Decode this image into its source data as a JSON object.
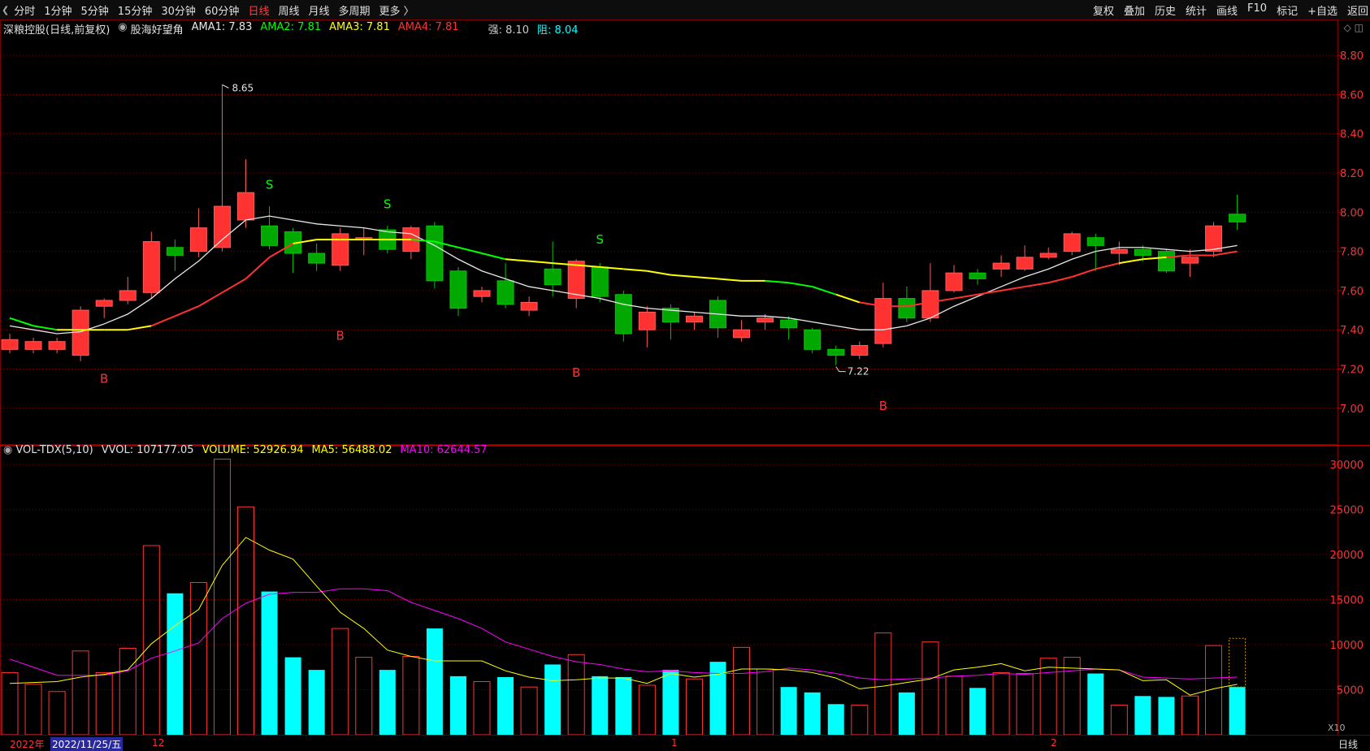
{
  "toolbar": {
    "left_items": [
      "分时",
      "1分钟",
      "5分钟",
      "15分钟",
      "30分钟",
      "60分钟",
      "日线",
      "周线",
      "月线",
      "多周期",
      "更多 〉"
    ],
    "active_index": 6,
    "right_items": [
      "复权",
      "叠加",
      "历史",
      "统计",
      "画线",
      "F10",
      "标记",
      "+自选",
      "返回"
    ]
  },
  "info": {
    "stock": "深粮控股(日线,前复权)",
    "indicator": "股海好望角",
    "ama1": "AMA1: 7.83",
    "ama2": "AMA2: 7.81",
    "ama3": "AMA3: 7.81",
    "ama4": "AMA4: 7.81",
    "strong": "强: 8.10",
    "resist": "阻: 8.04"
  },
  "vol_info": {
    "name": "VOL-TDX(5,10)",
    "vvol": "VVOL: 107177.05",
    "volume": "VOLUME: 52926.94",
    "ma5": "MA5: 56488.02",
    "ma10": "MA10: 62644.57"
  },
  "date_axis": {
    "year": "2022年",
    "selected_date": "2022/11/25/五",
    "m12": "12",
    "m1": "1",
    "m2": "2",
    "period": "日线"
  },
  "colors": {
    "up": "#ff3232",
    "down": "#00a800",
    "cyan": "#00ffff",
    "yellow": "#ffff00",
    "magenta": "#ff00ff",
    "green": "#00ff00",
    "white": "#e8e8e8",
    "grid": "#7a0000"
  },
  "chart_data": [
    {
      "type": "candlestick",
      "price_ticks": [
        "8.80",
        "8.60",
        "8.40",
        "8.20",
        "8.00",
        "7.80",
        "7.60",
        "7.40",
        "7.20",
        "7.00"
      ],
      "ylim": [
        6.85,
        8.9
      ],
      "candles": [
        {
          "o": 7.3,
          "h": 7.38,
          "l": 7.28,
          "c": 7.35
        },
        {
          "o": 7.3,
          "h": 7.36,
          "l": 7.28,
          "c": 7.34
        },
        {
          "o": 7.3,
          "h": 7.36,
          "l": 7.28,
          "c": 7.34
        },
        {
          "o": 7.27,
          "h": 7.52,
          "l": 7.24,
          "c": 7.5
        },
        {
          "o": 7.52,
          "h": 7.56,
          "l": 7.46,
          "c": 7.55
        },
        {
          "o": 7.55,
          "h": 7.67,
          "l": 7.53,
          "c": 7.6
        },
        {
          "o": 7.59,
          "h": 7.9,
          "l": 7.56,
          "c": 7.85
        },
        {
          "o": 7.82,
          "h": 7.86,
          "l": 7.7,
          "c": 7.78
        },
        {
          "o": 7.8,
          "h": 8.02,
          "l": 7.77,
          "c": 7.92
        },
        {
          "o": 7.82,
          "h": 8.65,
          "l": 7.8,
          "c": 8.03
        },
        {
          "o": 7.96,
          "h": 8.27,
          "l": 7.92,
          "c": 8.1
        },
        {
          "o": 7.93,
          "h": 8.03,
          "l": 7.81,
          "c": 7.83
        },
        {
          "o": 7.9,
          "h": 7.92,
          "l": 7.69,
          "c": 7.79
        },
        {
          "o": 7.79,
          "h": 7.84,
          "l": 7.7,
          "c": 7.74
        },
        {
          "o": 7.73,
          "h": 7.92,
          "l": 7.7,
          "c": 7.89
        },
        {
          "o": 7.86,
          "h": 7.92,
          "l": 7.78,
          "c": 7.87
        },
        {
          "o": 7.91,
          "h": 7.93,
          "l": 7.79,
          "c": 7.81
        },
        {
          "o": 7.8,
          "h": 7.93,
          "l": 7.76,
          "c": 7.92
        },
        {
          "o": 7.93,
          "h": 7.95,
          "l": 7.61,
          "c": 7.65
        },
        {
          "o": 7.7,
          "h": 7.72,
          "l": 7.47,
          "c": 7.51
        },
        {
          "o": 7.57,
          "h": 7.62,
          "l": 7.54,
          "c": 7.6
        },
        {
          "o": 7.65,
          "h": 7.74,
          "l": 7.51,
          "c": 7.53
        },
        {
          "o": 7.5,
          "h": 7.57,
          "l": 7.47,
          "c": 7.54
        },
        {
          "o": 7.71,
          "h": 7.85,
          "l": 7.57,
          "c": 7.63
        },
        {
          "o": 7.56,
          "h": 7.76,
          "l": 7.51,
          "c": 7.75
        },
        {
          "o": 7.72,
          "h": 7.74,
          "l": 7.54,
          "c": 7.57
        },
        {
          "o": 7.58,
          "h": 7.6,
          "l": 7.34,
          "c": 7.38
        },
        {
          "o": 7.4,
          "h": 7.52,
          "l": 7.31,
          "c": 7.49
        },
        {
          "o": 7.51,
          "h": 7.53,
          "l": 7.35,
          "c": 7.44
        },
        {
          "o": 7.44,
          "h": 7.49,
          "l": 7.4,
          "c": 7.47
        },
        {
          "o": 7.55,
          "h": 7.57,
          "l": 7.36,
          "c": 7.41
        },
        {
          "o": 7.36,
          "h": 7.45,
          "l": 7.34,
          "c": 7.4
        },
        {
          "o": 7.44,
          "h": 7.48,
          "l": 7.4,
          "c": 7.46
        },
        {
          "o": 7.45,
          "h": 7.47,
          "l": 7.35,
          "c": 7.41
        },
        {
          "o": 7.4,
          "h": 7.41,
          "l": 7.28,
          "c": 7.3
        },
        {
          "o": 7.3,
          "h": 7.32,
          "l": 7.22,
          "c": 7.27
        },
        {
          "o": 7.27,
          "h": 7.34,
          "l": 7.25,
          "c": 7.32
        },
        {
          "o": 7.33,
          "h": 7.64,
          "l": 7.31,
          "c": 7.56
        },
        {
          "o": 7.56,
          "h": 7.62,
          "l": 7.44,
          "c": 7.46
        },
        {
          "o": 7.46,
          "h": 7.74,
          "l": 7.44,
          "c": 7.6
        },
        {
          "o": 7.6,
          "h": 7.73,
          "l": 7.59,
          "c": 7.69
        },
        {
          "o": 7.69,
          "h": 7.71,
          "l": 7.63,
          "c": 7.66
        },
        {
          "o": 7.71,
          "h": 7.78,
          "l": 7.67,
          "c": 7.74
        },
        {
          "o": 7.71,
          "h": 7.83,
          "l": 7.7,
          "c": 7.77
        },
        {
          "o": 7.77,
          "h": 7.82,
          "l": 7.76,
          "c": 7.79
        },
        {
          "o": 7.8,
          "h": 7.9,
          "l": 7.78,
          "c": 7.89
        },
        {
          "o": 7.87,
          "h": 7.89,
          "l": 7.7,
          "c": 7.83
        },
        {
          "o": 7.79,
          "h": 7.85,
          "l": 7.73,
          "c": 7.81
        },
        {
          "o": 7.81,
          "h": 7.83,
          "l": 7.75,
          "c": 7.78
        },
        {
          "o": 7.8,
          "h": 7.81,
          "l": 7.69,
          "c": 7.7
        },
        {
          "o": 7.74,
          "h": 7.81,
          "l": 7.67,
          "c": 7.77
        },
        {
          "o": 7.8,
          "h": 7.95,
          "l": 7.77,
          "c": 7.93
        },
        {
          "o": 7.99,
          "h": 8.09,
          "l": 7.91,
          "c": 7.95
        }
      ],
      "ama_white": [
        7.42,
        7.4,
        7.38,
        7.39,
        7.43,
        7.48,
        7.56,
        7.66,
        7.75,
        7.86,
        7.96,
        7.98,
        7.96,
        7.94,
        7.93,
        7.92,
        7.9,
        7.89,
        7.83,
        7.76,
        7.7,
        7.66,
        7.62,
        7.6,
        7.58,
        7.56,
        7.53,
        7.51,
        7.5,
        7.49,
        7.48,
        7.47,
        7.47,
        7.46,
        7.44,
        7.42,
        7.4,
        7.4,
        7.42,
        7.46,
        7.52,
        7.57,
        7.62,
        7.67,
        7.71,
        7.76,
        7.8,
        7.82,
        7.82,
        7.81,
        7.8,
        7.81,
        7.83
      ],
      "ama_lower": [
        7.46,
        7.42,
        7.4,
        7.4,
        7.4,
        7.4,
        7.42,
        7.47,
        7.52,
        7.59,
        7.66,
        7.77,
        7.84,
        7.86,
        7.86,
        7.86,
        7.86,
        7.86,
        7.85,
        7.82,
        7.79,
        7.76,
        7.75,
        7.74,
        7.73,
        7.72,
        7.71,
        7.7,
        7.68,
        7.67,
        7.66,
        7.65,
        7.65,
        7.64,
        7.62,
        7.58,
        7.54,
        7.52,
        7.52,
        7.54,
        7.56,
        7.58,
        7.6,
        7.62,
        7.64,
        7.67,
        7.71,
        7.74,
        7.76,
        7.77,
        7.78,
        7.78,
        7.8
      ],
      "lower_colors": [
        "green",
        "green",
        "green",
        "yellow",
        "yellow",
        "yellow",
        "yellow",
        "red",
        "red",
        "red",
        "red",
        "red",
        "red",
        "yellow",
        "yellow",
        "yellow",
        "yellow",
        "yellow",
        "green",
        "green",
        "green",
        "green",
        "yellow",
        "yellow",
        "yellow",
        "yellow",
        "yellow",
        "yellow",
        "yellow",
        "yellow",
        "yellow",
        "yellow",
        "yellow",
        "green",
        "green",
        "green",
        "yellow",
        "red",
        "red",
        "red",
        "red",
        "red",
        "red",
        "red",
        "red",
        "red",
        "red",
        "red",
        "yellow",
        "yellow",
        "red",
        "red",
        "red"
      ],
      "signals": [
        {
          "i": 4,
          "t": "B",
          "price": 7.13
        },
        {
          "i": 11,
          "t": "S",
          "price": 8.12
        },
        {
          "i": 14,
          "t": "B",
          "price": 7.35
        },
        {
          "i": 16,
          "t": "S",
          "price": 8.02
        },
        {
          "i": 24,
          "t": "B",
          "price": 7.16
        },
        {
          "i": 25,
          "t": "S",
          "price": 7.84
        },
        {
          "i": 37,
          "t": "B",
          "price": 6.99
        }
      ],
      "high_label": {
        "i": 9,
        "text": "8.65"
      },
      "low_label": {
        "i": 35,
        "text": "7.22"
      }
    },
    {
      "type": "bar",
      "name": "volume",
      "ylim": [
        0,
        31000
      ],
      "ticks": [
        "30000",
        "25000",
        "20000",
        "15000",
        "10000",
        "5000"
      ],
      "multiplier_label": "X10",
      "values": [
        6900,
        5600,
        4800,
        9300,
        6900,
        9600,
        21000,
        15700,
        16900,
        30600,
        25300,
        15900,
        8600,
        7200,
        11800,
        8600,
        7200,
        8700,
        11800,
        6500,
        5900,
        6400,
        5300,
        7800,
        8900,
        6500,
        6400,
        5500,
        7200,
        6200,
        8100,
        9700,
        7300,
        5300,
        4700,
        3400,
        3300,
        11300,
        4700,
        10300,
        6500,
        5200,
        6900,
        6800,
        8500,
        8600,
        6800,
        3300,
        4300,
        4200,
        4300,
        9900,
        5300
      ],
      "ma5": [
        5700,
        5800,
        5900,
        6400,
        6700,
        7200,
        10100,
        12100,
        13900,
        18800,
        21900,
        20500,
        19500,
        16500,
        13600,
        11800,
        9400,
        8700,
        8200,
        8200,
        8200,
        7100,
        6400,
        6000,
        6100,
        6300,
        6300,
        5700,
        6800,
        6400,
        6700,
        7300,
        7300,
        7200,
        6900,
        6300,
        5100,
        5400,
        5800,
        6200,
        7200,
        7500,
        7900,
        7100,
        7500,
        7400,
        7300,
        7200,
        6000,
        6100,
        4400,
        5100,
        5600
      ],
      "ma10": [
        8400,
        7500,
        6600,
        6600,
        6600,
        7100,
        8500,
        9300,
        10200,
        12900,
        14600,
        15600,
        15800,
        15800,
        16200,
        16200,
        16000,
        14700,
        13800,
        12900,
        11800,
        10300,
        9500,
        8700,
        8100,
        7800,
        7300,
        7000,
        7100,
        6900,
        6800,
        6800,
        7000,
        7400,
        7200,
        6800,
        6300,
        6100,
        6200,
        6300,
        6500,
        6600,
        6800,
        6700,
        6900,
        7100,
        7300,
        7200,
        6400,
        6300,
        6200,
        6300,
        6400
      ],
      "last_dashed": true
    }
  ]
}
